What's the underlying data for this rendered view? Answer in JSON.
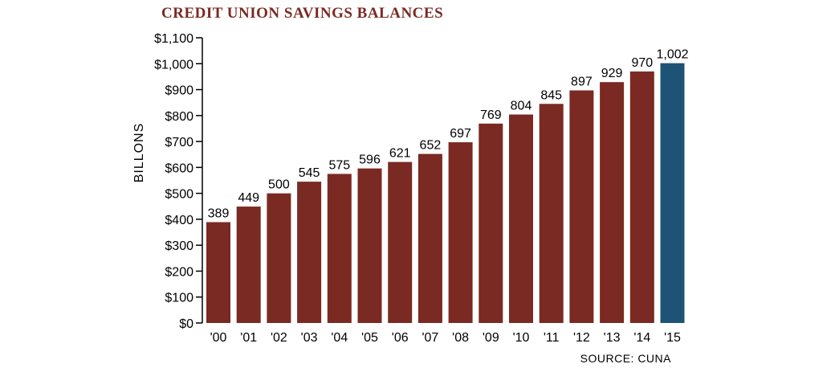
{
  "chart_data": {
    "type": "bar",
    "title": "CREDIT UNION SAVINGS BALANCES",
    "ylabel": "BILLONS",
    "source": "SOURCE: CUNA",
    "categories": [
      "'00",
      "'01",
      "'02",
      "'03",
      "'04",
      "'05",
      "'06",
      "'07",
      "'08",
      "'09",
      "'10",
      "'11",
      "'12",
      "'13",
      "'14",
      "'15"
    ],
    "values": [
      389,
      449,
      500,
      545,
      575,
      596,
      621,
      652,
      697,
      769,
      804,
      845,
      897,
      929,
      970,
      1002
    ],
    "value_labels": [
      "389",
      "449",
      "500",
      "545",
      "575",
      "596",
      "621",
      "652",
      "697",
      "769",
      "804",
      "845",
      "897",
      "929",
      "970",
      "1,002"
    ],
    "ylim": [
      0,
      1100
    ],
    "yticks": [
      0,
      100,
      200,
      300,
      400,
      500,
      600,
      700,
      800,
      900,
      1000,
      1100
    ],
    "ytick_labels": [
      "$0",
      "$100",
      "$200",
      "$300",
      "$400",
      "$500",
      "$600",
      "$700",
      "$800",
      "$900",
      "$1,000",
      "$1,100"
    ],
    "grid": false,
    "colors": {
      "bar": "#7a2a22",
      "highlight": "#1d5475",
      "title": "#7a2a22"
    },
    "highlight_index": 15
  }
}
